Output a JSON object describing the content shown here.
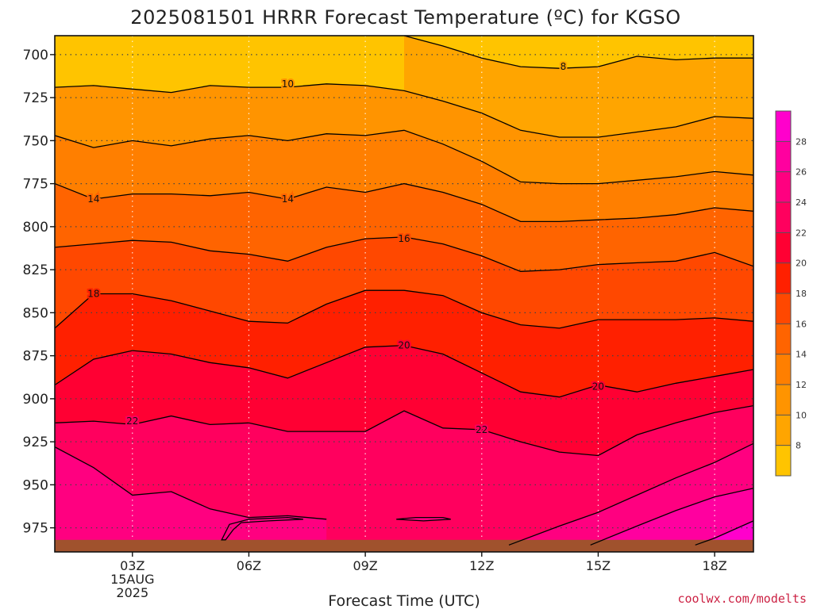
{
  "chart_data": {
    "type": "contour",
    "title": "2025081501 HRRR Forecast Temperature (ºC) for KGSO",
    "xlabel": "Forecast Time (UTC)",
    "credit": "coolwx.com/modelts",
    "x_hours": [
      1,
      19
    ],
    "y_pressure_hpa": [
      689,
      989
    ],
    "y_ticks": [
      "700",
      "725",
      "750",
      "775",
      "800",
      "825",
      "850",
      "875",
      "900",
      "925",
      "950",
      "975"
    ],
    "x_ticks": [
      {
        "hour": 3,
        "label": "03Z",
        "sub1": "15AUG",
        "sub2": "2025"
      },
      {
        "hour": 6,
        "label": "06Z"
      },
      {
        "hour": 9,
        "label": "09Z"
      },
      {
        "hour": 12,
        "label": "12Z"
      },
      {
        "hour": 15,
        "label": "15Z"
      },
      {
        "hour": 18,
        "label": "18Z"
      }
    ],
    "ground_pressure_hpa": 982,
    "ground_color": "#a0522d",
    "colorbar": {
      "levels": [
        6,
        8,
        10,
        12,
        14,
        16,
        18,
        20,
        22,
        24,
        26,
        28,
        30
      ],
      "tick_labels": [
        "8",
        "10",
        "12",
        "14",
        "16",
        "18",
        "20",
        "22",
        "24",
        "26",
        "28"
      ],
      "colors": [
        "#ffc400",
        "#ffa500",
        "#ff9400",
        "#ff7f00",
        "#ff6400",
        "#ff4800",
        "#ff2000",
        "#ff0033",
        "#ff005e",
        "#ff0080",
        "#ff009f",
        "#ff00cc"
      ]
    },
    "isotherms": [
      {
        "temp": 8,
        "label": "8",
        "label_hour": 14.0,
        "points": [
          [
            10.0,
            689
          ],
          [
            11.0,
            695
          ],
          [
            12.0,
            702
          ],
          [
            13.0,
            707
          ],
          [
            14.0,
            708
          ],
          [
            15.0,
            707
          ],
          [
            16.0,
            701
          ],
          [
            17.0,
            703
          ],
          [
            18.0,
            702
          ],
          [
            19.0,
            702
          ]
        ]
      },
      {
        "temp": 10,
        "label": "10",
        "label_hour": 7.9,
        "points": [
          [
            1,
            719
          ],
          [
            2,
            718
          ],
          [
            3,
            720
          ],
          [
            4,
            722
          ],
          [
            5,
            718
          ],
          [
            6,
            719
          ],
          [
            7,
            719
          ],
          [
            8,
            717
          ],
          [
            9,
            718
          ],
          [
            10,
            721
          ],
          [
            11,
            727
          ],
          [
            12,
            734
          ],
          [
            13,
            744
          ],
          [
            14,
            748
          ],
          [
            15,
            748
          ],
          [
            16,
            745
          ],
          [
            17,
            742
          ],
          [
            18,
            736
          ],
          [
            19,
            737
          ]
        ]
      },
      {
        "temp": 12,
        "label": "",
        "label_hour": null,
        "points": [
          [
            1,
            747
          ],
          [
            2,
            754
          ],
          [
            3,
            750
          ],
          [
            4,
            753
          ],
          [
            5,
            749
          ],
          [
            6,
            747
          ],
          [
            7,
            750
          ],
          [
            8,
            746
          ],
          [
            9,
            747
          ],
          [
            10,
            744
          ],
          [
            11,
            752
          ],
          [
            12,
            762
          ],
          [
            13,
            774
          ],
          [
            14,
            775
          ],
          [
            15,
            775
          ],
          [
            16,
            773
          ],
          [
            17,
            771
          ],
          [
            18,
            768
          ],
          [
            19,
            770
          ]
        ]
      },
      {
        "temp": 14,
        "label": "14",
        "label_hour": 2.0,
        "points": [
          [
            1,
            775
          ],
          [
            2,
            784
          ],
          [
            3,
            781
          ],
          [
            4,
            781
          ],
          [
            5,
            782
          ],
          [
            6,
            780
          ],
          [
            7,
            784
          ],
          [
            8,
            777
          ],
          [
            9,
            780
          ],
          [
            10,
            775
          ],
          [
            11,
            780
          ],
          [
            12,
            787
          ],
          [
            13,
            797
          ],
          [
            14,
            797
          ],
          [
            15,
            796
          ],
          [
            16,
            795
          ],
          [
            17,
            793
          ],
          [
            18,
            789
          ],
          [
            19,
            791
          ]
        ]
      },
      {
        "temp": 16,
        "label": "16",
        "label_hour": 10.0,
        "points": [
          [
            1,
            812
          ],
          [
            2,
            810
          ],
          [
            3,
            808
          ],
          [
            4,
            809
          ],
          [
            5,
            814
          ],
          [
            6,
            816
          ],
          [
            7,
            820
          ],
          [
            8,
            812
          ],
          [
            9,
            807
          ],
          [
            10,
            806
          ],
          [
            11,
            810
          ],
          [
            12,
            817
          ],
          [
            13,
            826
          ],
          [
            14,
            825
          ],
          [
            15,
            822
          ],
          [
            16,
            821
          ],
          [
            17,
            820
          ],
          [
            18,
            815
          ],
          [
            19,
            823
          ]
        ]
      },
      {
        "temp": 18,
        "label": "18",
        "label_hour": 2.0,
        "points": [
          [
            1,
            859
          ],
          [
            2,
            839
          ],
          [
            3,
            839
          ],
          [
            4,
            843
          ],
          [
            5,
            849
          ],
          [
            6,
            855
          ],
          [
            7,
            856
          ],
          [
            8,
            845
          ],
          [
            9,
            837
          ],
          [
            10,
            837
          ],
          [
            11,
            840
          ],
          [
            12,
            850
          ],
          [
            13,
            857
          ],
          [
            14,
            859
          ],
          [
            15,
            854
          ],
          [
            16,
            854
          ],
          [
            17,
            854
          ],
          [
            18,
            853
          ],
          [
            19,
            855
          ]
        ]
      },
      {
        "temp": 20,
        "label": "20",
        "label_hour": 10.0,
        "points": [
          [
            1,
            892
          ],
          [
            2,
            877
          ],
          [
            3,
            872
          ],
          [
            4,
            874
          ],
          [
            5,
            879
          ],
          [
            6,
            882
          ],
          [
            7,
            888
          ],
          [
            8,
            879
          ],
          [
            9,
            870
          ],
          [
            10,
            869
          ],
          [
            11,
            874
          ],
          [
            12,
            885
          ],
          [
            13,
            896
          ],
          [
            14,
            899
          ],
          [
            15,
            892
          ],
          [
            16,
            896
          ],
          [
            17,
            891
          ],
          [
            18,
            887
          ],
          [
            19,
            883
          ]
        ]
      },
      {
        "temp": 22,
        "label": "22",
        "label_hour": 2.0,
        "points": [
          [
            1,
            914
          ],
          [
            2,
            913
          ],
          [
            3,
            915
          ],
          [
            4,
            910
          ],
          [
            5,
            915
          ],
          [
            6,
            914
          ],
          [
            7,
            919
          ],
          [
            8,
            919
          ],
          [
            9,
            919
          ],
          [
            10,
            907
          ],
          [
            11,
            917
          ],
          [
            12,
            918
          ],
          [
            13,
            925
          ],
          [
            14,
            931
          ],
          [
            15,
            933
          ],
          [
            16,
            921
          ],
          [
            17,
            914
          ],
          [
            18,
            908
          ],
          [
            19,
            904
          ]
        ]
      },
      {
        "temp": 22,
        "label": "22",
        "label_hour": 12.0,
        "points": []
      },
      {
        "temp": 24,
        "label": "",
        "label_hour": null,
        "points": [
          [
            1,
            928
          ],
          [
            2,
            940
          ],
          [
            3,
            956
          ],
          [
            4,
            954
          ],
          [
            5,
            964
          ],
          [
            6,
            969
          ],
          [
            7,
            968
          ],
          [
            8,
            970
          ]
        ]
      },
      {
        "temp": 24,
        "label": "",
        "label_hour": null,
        "points": [
          [
            12.7,
            985
          ],
          [
            14,
            974
          ],
          [
            15,
            966
          ],
          [
            16,
            956
          ],
          [
            17,
            946
          ],
          [
            18,
            937
          ],
          [
            19,
            926
          ]
        ]
      },
      {
        "temp": 26,
        "label": "",
        "label_hour": null,
        "points": [
          [
            14.8,
            985
          ],
          [
            16,
            974
          ],
          [
            17,
            965
          ],
          [
            18,
            957
          ],
          [
            19,
            952
          ]
        ]
      },
      {
        "temp": 28,
        "label": "",
        "label_hour": null,
        "points": [
          [
            17.5,
            985
          ],
          [
            18,
            981
          ],
          [
            19,
            971
          ]
        ]
      }
    ],
    "closed_contours": [
      {
        "temp": 24,
        "points": [
          [
            5.3,
            982
          ],
          [
            5.5,
            973
          ],
          [
            6,
            970
          ],
          [
            7,
            969
          ],
          [
            7.4,
            970
          ],
          [
            6.5,
            971
          ],
          [
            5.8,
            972
          ],
          [
            5.6,
            976
          ],
          [
            5.4,
            982
          ]
        ]
      },
      {
        "temp": 24,
        "points": [
          [
            9.8,
            970
          ],
          [
            10.3,
            969
          ],
          [
            11,
            969
          ],
          [
            11.2,
            970
          ],
          [
            10.5,
            971
          ],
          [
            9.8,
            970
          ]
        ]
      }
    ],
    "contour_labels": [
      {
        "text": "10",
        "hour": 7.0,
        "hpa": 717
      },
      {
        "text": "8",
        "hour": 14.1,
        "hpa": 707
      },
      {
        "text": "14",
        "hour": 2.0,
        "hpa": 784
      },
      {
        "text": "14",
        "hour": 7.0,
        "hpa": 784
      },
      {
        "text": "16",
        "hour": 10.0,
        "hpa": 807
      },
      {
        "text": "18",
        "hour": 2.0,
        "hpa": 839
      },
      {
        "text": "20",
        "hour": 10.0,
        "hpa": 869
      },
      {
        "text": "20",
        "hour": 15.0,
        "hpa": 893
      },
      {
        "text": "22",
        "hour": 3.0,
        "hpa": 913
      },
      {
        "text": "22",
        "hour": 12.0,
        "hpa": 918
      }
    ]
  }
}
